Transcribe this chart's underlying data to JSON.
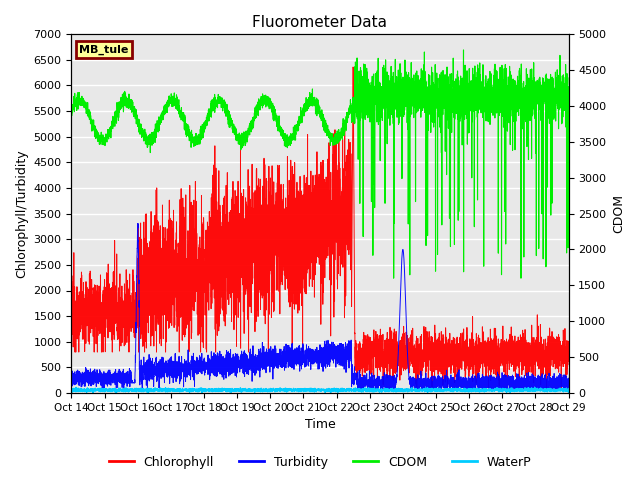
{
  "title": "Fluorometer Data",
  "ylabel_left": "Chlorophyll/Turbidity",
  "ylabel_right": "CDOM",
  "xlabel": "Time",
  "station_label": "MB_tule",
  "xlim_days": [
    0,
    15
  ],
  "ylim_left": [
    0,
    7000
  ],
  "ylim_right": [
    0,
    5000
  ],
  "xtick_labels": [
    "Oct 14",
    "Oct 15",
    "Oct 16",
    "Oct 17",
    "Oct 18",
    "Oct 19",
    "Oct 20",
    "Oct 21",
    "Oct 22",
    "Oct 23",
    "Oct 24",
    "Oct 25",
    "Oct 26",
    "Oct 27",
    "Oct 28",
    "Oct 29"
  ],
  "colors": {
    "chlorophyll": "#FF0000",
    "turbidity": "#0000FF",
    "cdom": "#00EE00",
    "waterp": "#00CCFF",
    "background": "#E8E8E8",
    "station_bg": "#FFFF99",
    "station_border": "#880000"
  },
  "legend_entries": [
    "Chlorophyll",
    "Turbidity",
    "CDOM",
    "WaterP"
  ]
}
